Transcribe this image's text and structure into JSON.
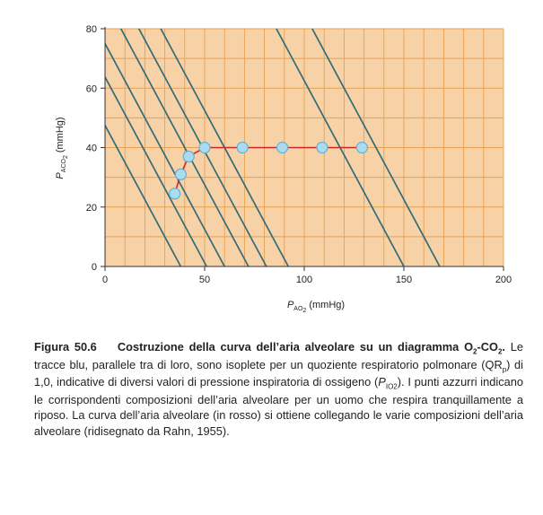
{
  "chart_data": {
    "type": "line",
    "x_range": [
      0,
      200
    ],
    "y_range": [
      0,
      80
    ],
    "x_ticks": [
      "0",
      "50",
      "100",
      "150",
      "200"
    ],
    "y_ticks": [
      "0",
      "20",
      "40",
      "60",
      "80"
    ],
    "xlabel": {
      "symbol": "P",
      "sub": "AO",
      "sub2": "2",
      "unit": "(mmHg)"
    },
    "ylabel": {
      "symbol": "P",
      "sub": "ACO",
      "sub2": "2",
      "unit": "(mmHg)"
    },
    "grid": true,
    "isopleths": {
      "slope": -1.25,
      "x_intercepts": [
        38,
        51,
        60,
        72,
        81,
        92,
        150,
        168
      ]
    },
    "alveolar_points": [
      {
        "x": 35,
        "y": 24.5
      },
      {
        "x": 38,
        "y": 31
      },
      {
        "x": 42,
        "y": 37
      },
      {
        "x": 50,
        "y": 40
      },
      {
        "x": 69,
        "y": 40
      },
      {
        "x": 89,
        "y": 40
      },
      {
        "x": 109,
        "y": 40
      },
      {
        "x": 129,
        "y": 40
      }
    ],
    "colors": {
      "background": "#f7d2a6",
      "grid": "#e9a050",
      "isopleth": "#336b7a",
      "curve": "#c8282a",
      "point_fill": "#a9dcef",
      "point_stroke": "#6aaed0",
      "axis": "#333333"
    }
  },
  "caption": {
    "figure_label": "Figura 50.6",
    "title_line": "Costruzione della curva dell’aria alveolare su un diagramma O",
    "title_sub": "2",
    "title_dash": "-CO",
    "title_sub2": "2",
    "title_end": ".",
    "text_part1": " Le tracce blu, parallele tra di loro, sono isoplete per un quoziente respiratorio polmonare (QR",
    "text_sub_p": "p",
    "text_part2": ") di 1,0, indicative di diversi valori di pressione inspiratoria di ossigeno (",
    "text_italic_p": "P",
    "text_sub_io2": "IO2",
    "text_part3": "). I punti azzurri indicano le corrispondenti composizioni dell’aria alveolare per un uomo che respira tranquillamente a riposo. La curva dell’aria alveolare (in rosso) si ottiene collegando le varie composizioni dell’aria alveolare (ridisegnato da Rahn, 1955)."
  }
}
